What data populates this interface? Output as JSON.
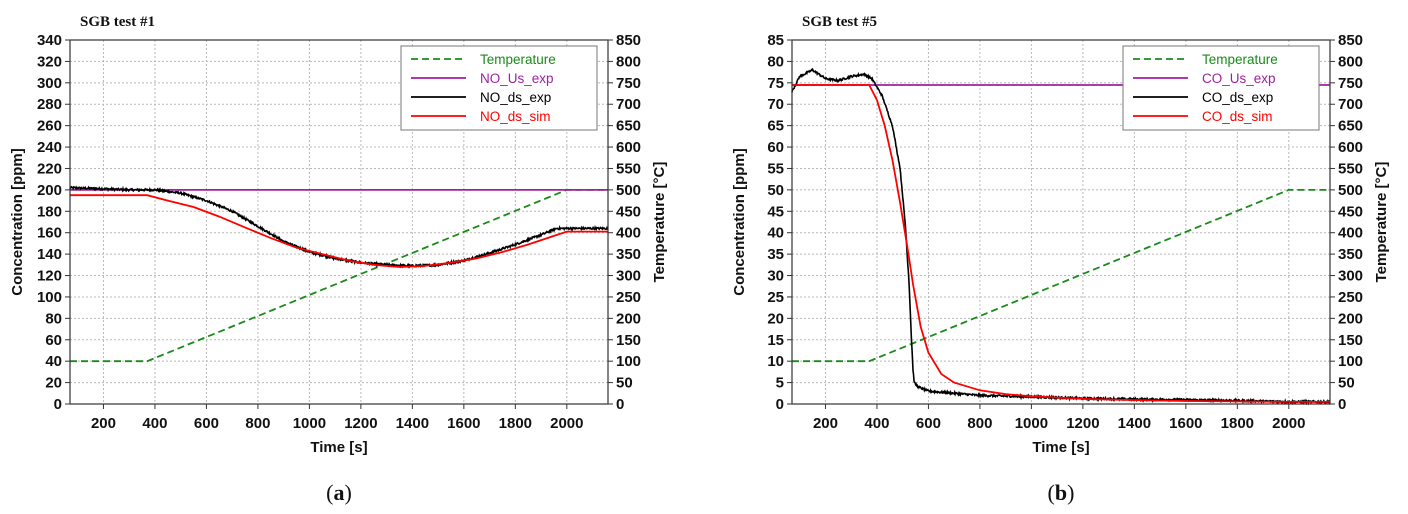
{
  "chart_data": [
    {
      "type": "line",
      "title": "SGB test #1",
      "caption_letter": "a",
      "xlabel": "Time [s]",
      "ylabel": "Concentration [ppm]",
      "y2label": "Temperature [°C]",
      "xlim": [
        70,
        2160
      ],
      "ylim": [
        0,
        340
      ],
      "y2lim": [
        0,
        850
      ],
      "xticks": [
        200,
        400,
        600,
        800,
        1000,
        1200,
        1400,
        1600,
        1800,
        2000
      ],
      "yticks": [
        0,
        20,
        40,
        60,
        80,
        100,
        120,
        140,
        160,
        180,
        200,
        220,
        240,
        260,
        280,
        300,
        320,
        340
      ],
      "y2ticks": [
        0,
        50,
        100,
        150,
        200,
        250,
        300,
        350,
        400,
        450,
        500,
        550,
        600,
        650,
        700,
        750,
        800,
        850
      ],
      "grid": true,
      "legend_position": "top-right",
      "series": [
        {
          "name": "Temperature",
          "axis": "right",
          "color": "#1a8a1a",
          "dash": true,
          "x": [
            70,
            370,
            2000,
            2160
          ],
          "y": [
            100,
            100,
            500,
            500
          ]
        },
        {
          "name": "NO_Us_exp",
          "axis": "left",
          "color": "#a020a0",
          "x": [
            70,
            2160
          ],
          "y": [
            200,
            200
          ]
        },
        {
          "name": "NO_ds_exp",
          "axis": "left",
          "color": "#000000",
          "noisy": true,
          "x": [
            70,
            200,
            300,
            400,
            500,
            600,
            700,
            800,
            900,
            1000,
            1100,
            1200,
            1300,
            1400,
            1500,
            1600,
            1700,
            1800,
            1900,
            1960,
            2000,
            2160
          ],
          "y": [
            202,
            201,
            200,
            200,
            197,
            190,
            180,
            166,
            152,
            142,
            136,
            132,
            130,
            129,
            130,
            134,
            141,
            149,
            158,
            164,
            164,
            164
          ]
        },
        {
          "name": "NO_ds_sim",
          "axis": "left",
          "color": "#ff0000",
          "x": [
            70,
            370,
            450,
            550,
            650,
            750,
            850,
            950,
            1050,
            1150,
            1250,
            1350,
            1450,
            1550,
            1650,
            1750,
            1850,
            1950,
            2000,
            2160
          ],
          "y": [
            195,
            195,
            190,
            184,
            175,
            165,
            155,
            146,
            140,
            134,
            130,
            128,
            129,
            132,
            136,
            142,
            149,
            157,
            161,
            161
          ]
        }
      ]
    },
    {
      "type": "line",
      "title": "SGB test #5",
      "caption_letter": "b",
      "xlabel": "Time [s]",
      "ylabel": "Concentration [ppm]",
      "y2label": "Temperature [°C]",
      "xlim": [
        70,
        2160
      ],
      "ylim": [
        0,
        85
      ],
      "y2lim": [
        0,
        850
      ],
      "xticks": [
        200,
        400,
        600,
        800,
        1000,
        1200,
        1400,
        1600,
        1800,
        2000
      ],
      "yticks": [
        0,
        5,
        10,
        15,
        20,
        25,
        30,
        35,
        40,
        45,
        50,
        55,
        60,
        65,
        70,
        75,
        80,
        85
      ],
      "y2ticks": [
        0,
        50,
        100,
        150,
        200,
        250,
        300,
        350,
        400,
        450,
        500,
        550,
        600,
        650,
        700,
        750,
        800,
        850
      ],
      "grid": true,
      "legend_position": "top-right",
      "series": [
        {
          "name": "Temperature",
          "axis": "right",
          "color": "#1a8a1a",
          "dash": true,
          "x": [
            70,
            370,
            2000,
            2160
          ],
          "y": [
            100,
            100,
            500,
            500
          ]
        },
        {
          "name": "CO_Us_exp",
          "axis": "left",
          "color": "#a020a0",
          "x": [
            70,
            2160
          ],
          "y": [
            74.5,
            74.5
          ]
        },
        {
          "name": "CO_ds_exp",
          "axis": "left",
          "color": "#000000",
          "noisy": true,
          "x": [
            70,
            100,
            150,
            200,
            250,
            300,
            350,
            380,
            420,
            460,
            490,
            510,
            525,
            535,
            540,
            545,
            560,
            600,
            700,
            800,
            1000,
            1200,
            1400,
            1600,
            1800,
            2000,
            2160
          ],
          "y": [
            73,
            76.5,
            78,
            76,
            75.5,
            76.5,
            77,
            76,
            72,
            65,
            55,
            42,
            28,
            14,
            8,
            5,
            4,
            3,
            2.5,
            2,
            1.7,
            1.3,
            1.1,
            1,
            0.8,
            0.5,
            0.5
          ]
        },
        {
          "name": "CO_ds_sim",
          "axis": "left",
          "color": "#ff0000",
          "x": [
            70,
            370,
            400,
            430,
            460,
            490,
            520,
            540,
            570,
            600,
            650,
            700,
            800,
            900,
            1000,
            1200,
            1400,
            1600,
            1800,
            2000,
            2160
          ],
          "y": [
            74.5,
            74.5,
            71,
            65,
            57,
            47,
            36,
            28,
            18,
            12,
            7,
            5,
            3.2,
            2.3,
            1.8,
            1.2,
            0.9,
            0.7,
            0.6,
            0.5,
            0.5
          ]
        }
      ]
    }
  ]
}
